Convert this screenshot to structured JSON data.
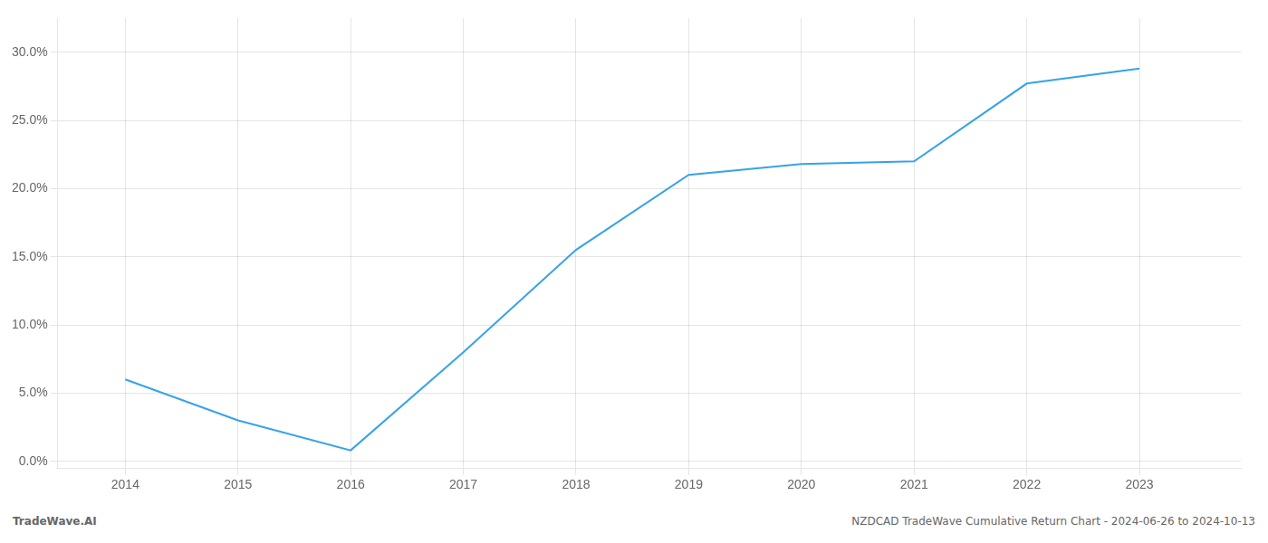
{
  "chart_data": {
    "type": "line",
    "x": [
      2014,
      2015,
      2016,
      2017,
      2018,
      2019,
      2020,
      2021,
      2022,
      2023
    ],
    "values": [
      0.06,
      0.03,
      0.008,
      0.08,
      0.155,
      0.21,
      0.218,
      0.22,
      0.277,
      0.288
    ],
    "xlim": [
      2013.4,
      2023.9
    ],
    "xticks": [
      2014,
      2015,
      2016,
      2017,
      2018,
      2019,
      2020,
      2021,
      2022,
      2023
    ],
    "ylim": [
      -0.005,
      0.325
    ],
    "yticks": [
      {
        "value": 0.0,
        "label": "0.0%"
      },
      {
        "value": 0.05,
        "label": "5.0%"
      },
      {
        "value": 0.1,
        "label": "10.0%"
      },
      {
        "value": 0.15,
        "label": "15.0%"
      },
      {
        "value": 0.2,
        "label": "20.0%"
      },
      {
        "value": 0.25,
        "label": "25.0%"
      },
      {
        "value": 0.3,
        "label": "30.0%"
      }
    ],
    "grid": true,
    "annotations": [
      "TradeWave.AI",
      "NZDCAD TradeWave Cumulative Return Chart - 2024-06-26 to 2024-10-13"
    ]
  }
}
